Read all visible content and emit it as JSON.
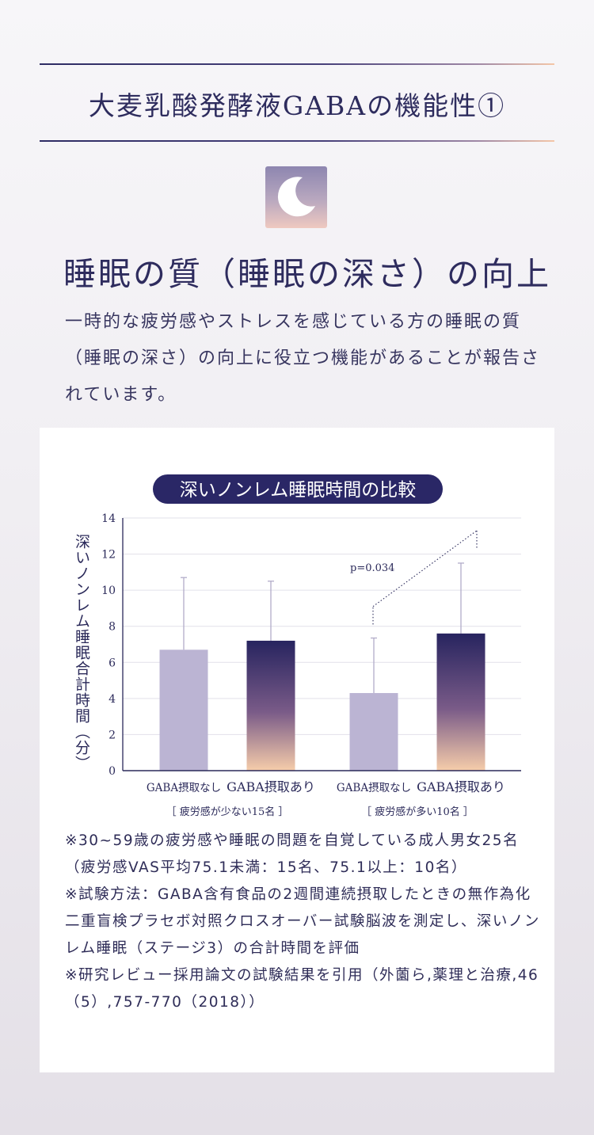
{
  "header": {
    "title": "大麦乳酸発酵液GABAの機能性①"
  },
  "icon": {
    "name": "crescent-moon-icon"
  },
  "section": {
    "subtitle": "睡眠の質（睡眠の深さ）の向上",
    "description": "一時的な疲労感やストレスを感じている方の睡眠の質（睡眠の深さ）の向上に役立つ機能があることが報告されています。"
  },
  "chart_data": {
    "type": "bar",
    "title": "深いノンレム睡眠時間の比較",
    "ylabel": "深いノンレム睡眠合計時間（分）",
    "xlabel": "",
    "ylim": [
      0,
      14
    ],
    "yticks": [
      0,
      2,
      4,
      6,
      8,
      10,
      12,
      14
    ],
    "grid": true,
    "categories": [
      "GABA摂取なし",
      "GABA摂取あり",
      "GABA摂取なし",
      "GABA摂取あり"
    ],
    "groups": [
      "［ 疲労感が少ない15名 ］",
      "［ 疲労感が多い10名 ］"
    ],
    "values": [
      6.7,
      7.2,
      4.3,
      7.6
    ],
    "error_upper": [
      10.7,
      10.5,
      7.35,
      11.5
    ],
    "annotation": {
      "text": "p=0.034",
      "between": [
        2,
        3
      ]
    },
    "colors": {
      "without": "#bbb4d3",
      "with_top": "#27245f",
      "with_mid": "#7a5b88",
      "with_bottom": "#f6cdaa",
      "axis": "#2b2a5a",
      "grid": "#e2e0ea",
      "title_bg": "#2a2766"
    }
  },
  "notes": [
    "※30~59歳の疲労感や睡眠の問題を自覚している成人男女25名（疲労感VAS平均75.1未満：15名、75.1以上：10名）",
    "※試験方法：GABA含有食品の2週間連続摂取したときの無作為化二重盲検プラセボ対照クロスオーバー試験脳波を測定し、深いノンレム睡眠（ステージ3）の合計時間を評価",
    "※研究レビュー採用論文の試験結果を引用（外薗ら,薬理と治療,46（5）,757-770（2018））"
  ]
}
